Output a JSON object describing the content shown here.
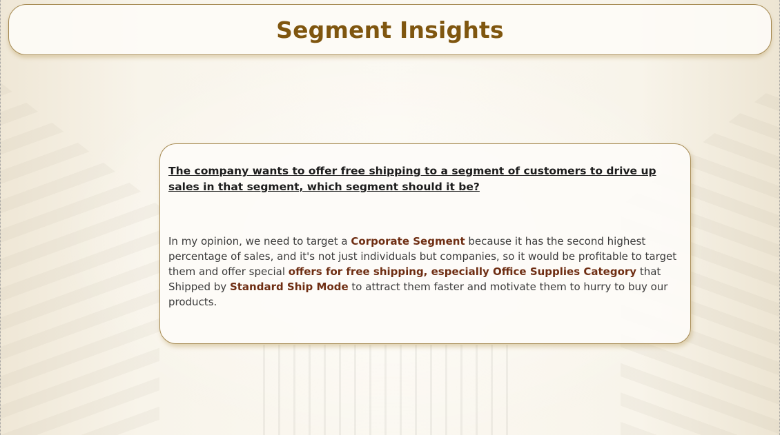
{
  "header": {
    "title": "Segment Insights"
  },
  "insight": {
    "question": "The company wants to offer free shipping to a segment of customers to drive up sales in that segment, which segment should it be?",
    "answer": {
      "part1": "In my opinion, we need to target a ",
      "highlight1": "Corporate Segment",
      "part2": " because it has the second highest percentage of sales, and it's not just individuals but companies, so it would be profitable to target them and offer special ",
      "highlight2": "offers for free shipping, especially Office Supplies Category",
      "part3": " that Shipped by ",
      "highlight3": "Standard Ship Mode",
      "part4": " to attract them faster and motivate them to hurry to buy our products."
    }
  },
  "colors": {
    "title": "#7f560f",
    "highlight": "#6e2d12",
    "border": "#a68a52"
  }
}
